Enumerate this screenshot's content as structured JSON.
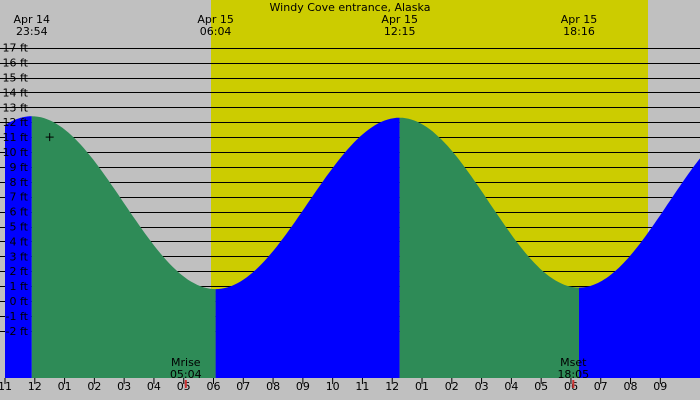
{
  "chart_data": {
    "type": "area",
    "title": "Windy Cove entrance, Alaska",
    "unit": "ft",
    "y_ticks": [
      "17 ft",
      "16 ft",
      "15 ft",
      "14 ft",
      "13 ft",
      "12 ft",
      "11 ft",
      "10 ft",
      "9 ft",
      "8 ft",
      "7 ft",
      "6 ft",
      "5 ft",
      "4 ft",
      "3 ft",
      "2 ft",
      "1 ft",
      "0 ft",
      "-1 ft",
      "-2 ft"
    ],
    "ylim": [
      -3.5,
      17.5
    ],
    "x_hour_ticks": [
      "11",
      "12",
      "01",
      "02",
      "03",
      "04",
      "05",
      "06",
      "07",
      "08",
      "09",
      "10",
      "11",
      "12",
      "01",
      "02",
      "03",
      "04",
      "05",
      "06",
      "07",
      "08",
      "09"
    ],
    "xlim_hours": [
      -1.0,
      22.5
    ],
    "extremes": [
      {
        "date": "Apr 14",
        "time": "23:54",
        "hours": -0.1,
        "height": 12.4,
        "kind": "high"
      },
      {
        "date": "Apr 15",
        "time": "06:04",
        "hours": 6.07,
        "height": 0.8,
        "kind": "low"
      },
      {
        "date": "Apr 15",
        "time": "12:15",
        "hours": 12.25,
        "height": 12.3,
        "kind": "high"
      },
      {
        "date": "Apr 15",
        "time": "18:16",
        "hours": 18.27,
        "height": 0.9,
        "kind": "low"
      }
    ],
    "tide_curve_end": {
      "hours": 22.5,
      "height": 7.5
    },
    "daylight": {
      "start_hours": 5.9,
      "end_hours": 20.6
    },
    "moon": [
      {
        "label": "Mrise",
        "time": "05:04",
        "hours": 5.07
      },
      {
        "label": "Mset",
        "time": "18:05",
        "hours": 18.08
      }
    ],
    "marker": {
      "hours": 0.5,
      "height": 11.0
    },
    "colors": {
      "night_bg": "#c0c0c0",
      "day_bg": "#cccc00",
      "falling_fill": "#2e8b57",
      "rising_fill": "#0000ff",
      "grid": "#000000"
    },
    "grid": true
  }
}
